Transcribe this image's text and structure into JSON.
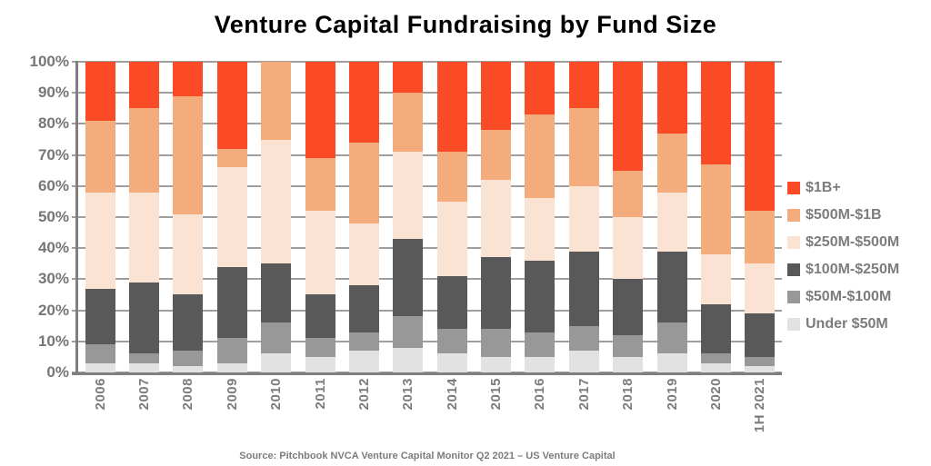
{
  "title": "Venture Capital Fundraising by Fund Size",
  "source_note": "Source: Pitchbook NVCA Venture Capital Monitor Q2 2021 – US Venture Capital",
  "colors": {
    "band_1b_plus": "#fb4b26",
    "band_500m_1b": "#f4ac7d",
    "band_250m_500m": "#fbe3d4",
    "band_100m_250m": "#595959",
    "band_50m_100m": "#989898",
    "band_under_50m": "#e2e2e2",
    "gridline": "#9e9e9e",
    "axis": "#7f7f7f",
    "axis_text": "#767676",
    "title_text": "#000000"
  },
  "chart_data": {
    "type": "bar",
    "subtype": "stacked-percent",
    "title": "Venture Capital Fundraising by Fund Size",
    "xlabel": "",
    "ylabel": "",
    "ylim": [
      0,
      100
    ],
    "grid": true,
    "legend_position": "right",
    "y_ticks": [
      "0%",
      "10%",
      "20%",
      "30%",
      "40%",
      "50%",
      "60%",
      "70%",
      "80%",
      "90%",
      "100%"
    ],
    "categories": [
      "2006",
      "2007",
      "2008",
      "2009",
      "2010",
      "2011",
      "2012",
      "2013",
      "2014",
      "2015",
      "2016",
      "2017",
      "2018",
      "2019",
      "2020",
      "1H 2021"
    ],
    "series": [
      {
        "name": "$1B+",
        "color": "#fb4b26",
        "values": [
          19,
          15,
          11,
          28,
          0,
          31,
          26,
          10,
          29,
          22,
          17,
          15,
          35,
          23,
          33,
          48
        ]
      },
      {
        "name": "$500M-$1B",
        "color": "#f4ac7d",
        "values": [
          23,
          27,
          38,
          6,
          25,
          17,
          26,
          19,
          16,
          16,
          27,
          25,
          15,
          19,
          29,
          17
        ]
      },
      {
        "name": "$250M-$500M",
        "color": "#fbe3d4",
        "values": [
          31,
          29,
          26,
          32,
          40,
          27,
          20,
          28,
          24,
          25,
          20,
          21,
          20,
          19,
          16,
          16
        ]
      },
      {
        "name": "$100M-$250M",
        "color": "#595959",
        "values": [
          18,
          23,
          18,
          23,
          19,
          14,
          15,
          25,
          17,
          23,
          23,
          24,
          18,
          23,
          16,
          14
        ]
      },
      {
        "name": "$50M-$100M",
        "color": "#989898",
        "values": [
          6,
          3,
          5,
          8,
          10,
          6,
          6,
          10,
          8,
          9,
          8,
          8,
          7,
          10,
          3,
          3
        ]
      },
      {
        "name": "Under $50M",
        "color": "#e2e2e2",
        "values": [
          3,
          3,
          2,
          3,
          6,
          5,
          7,
          8,
          6,
          5,
          5,
          7,
          5,
          6,
          3,
          2
        ]
      }
    ]
  }
}
